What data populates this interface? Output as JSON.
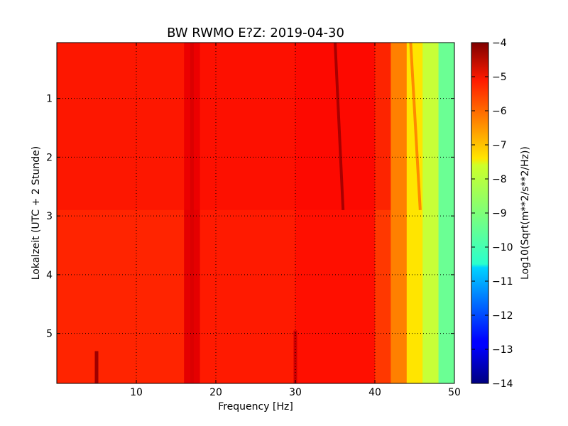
{
  "chart_data": {
    "type": "heatmap",
    "title": "BW RWMO E?Z: 2019-04-30",
    "xlabel": "Frequency [Hz]",
    "ylabel": "Lokalzeit (UTC + 2 Stunde)",
    "xlim": [
      0,
      50
    ],
    "ylim": [
      5.85,
      0.05
    ],
    "y_inverted": true,
    "xticks": [
      10,
      20,
      30,
      40,
      50
    ],
    "yticks": [
      1,
      2,
      3,
      4,
      5
    ],
    "grid": true,
    "colormap": "jet",
    "colorbar": {
      "label": "Log10(Sqrt(m**2/s**2/Hz))",
      "range": [
        -14,
        -4
      ],
      "ticks": [
        -4,
        -5,
        -6,
        -7,
        -8,
        -9,
        -10,
        -11,
        -12,
        -13,
        -14
      ]
    },
    "upper_segment_end_time": 2.9,
    "value_bands_by_frequency": [
      {
        "freq": [
          0,
          16
        ],
        "value": -5.6
      },
      {
        "freq": [
          16,
          18
        ],
        "value": -5.0
      },
      {
        "freq": [
          18,
          30
        ],
        "value": -5.5
      },
      {
        "freq": [
          30,
          40
        ],
        "value": -5.4
      },
      {
        "freq": [
          40,
          42
        ],
        "value": -5.8
      },
      {
        "freq": [
          42,
          44
        ],
        "value": -6.5
      },
      {
        "freq": [
          44,
          46
        ],
        "value": -7.5
      },
      {
        "freq": [
          46,
          48
        ],
        "value": -8.3
      },
      {
        "freq": [
          48,
          50
        ],
        "value": -9.2
      }
    ],
    "features": [
      {
        "type": "vertical_line",
        "freq": 17,
        "time": [
          0.05,
          5.85
        ],
        "value": -4.9
      },
      {
        "type": "drifting_line",
        "freq_start": 35.0,
        "freq_end": 36.0,
        "time": [
          0.05,
          2.9
        ],
        "value": -4.4
      },
      {
        "type": "drifting_line",
        "freq_start": 44.5,
        "freq_end": 45.7,
        "time": [
          0.05,
          2.9
        ],
        "value": -6.6
      },
      {
        "type": "vertical_line",
        "freq": 30,
        "time": [
          4.95,
          5.85
        ],
        "value": -4.8
      },
      {
        "type": "vertical_line",
        "freq": 5,
        "time": [
          5.3,
          5.85
        ],
        "value": -4.3
      }
    ]
  }
}
